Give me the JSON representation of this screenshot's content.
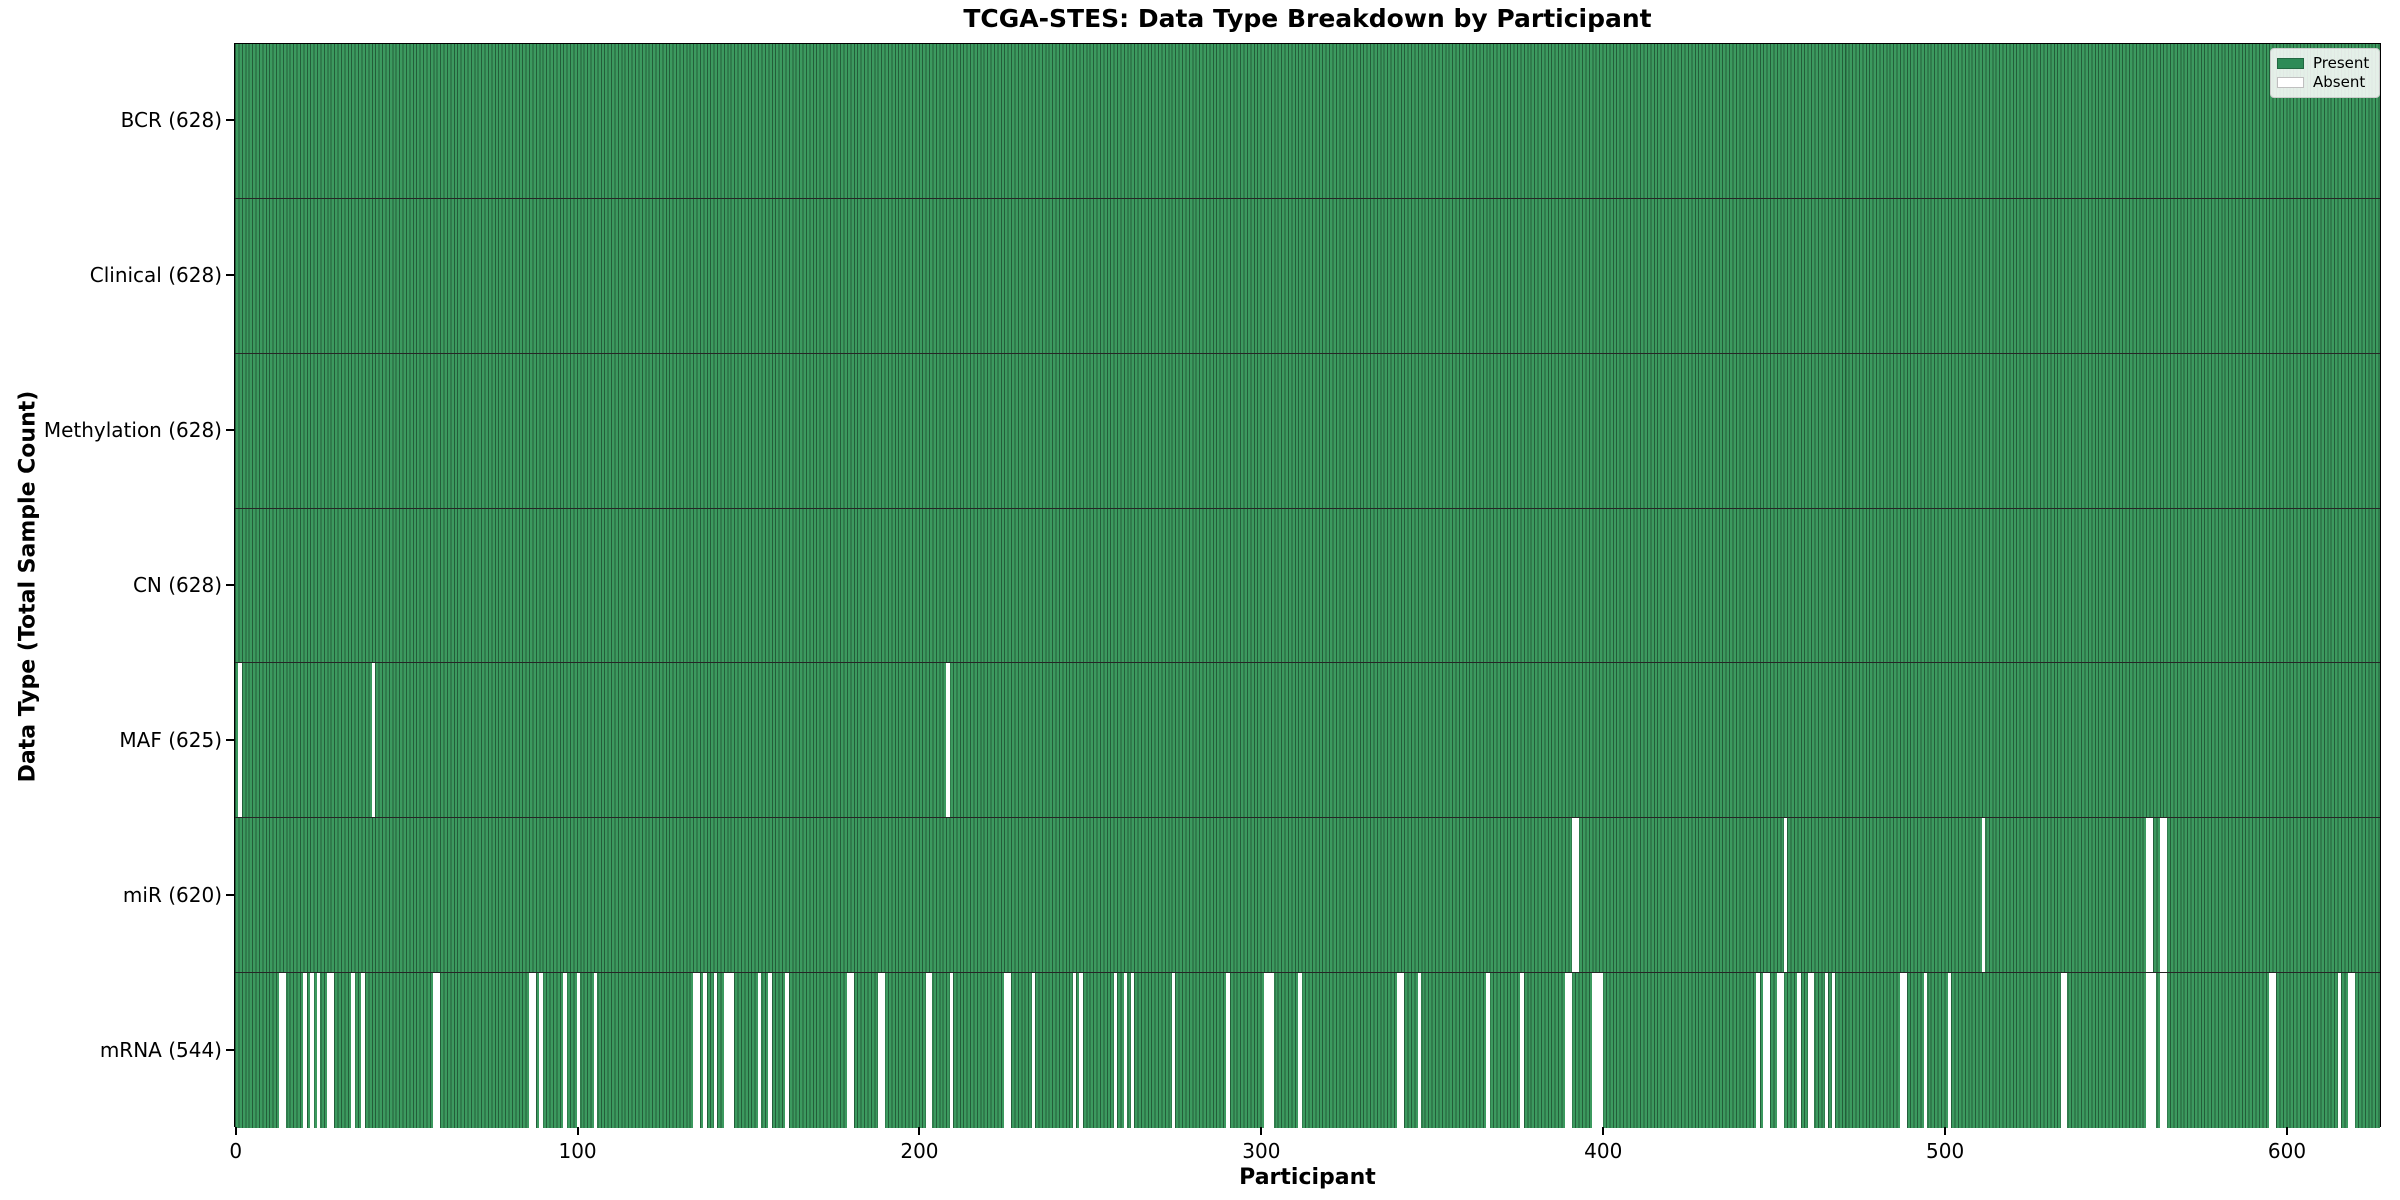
{
  "title": "TCGA-STES: Data Type Breakdown by Participant",
  "chart_data": {
    "type": "heatmap",
    "title": "TCGA-STES: Data Type Breakdown by Participant",
    "xlabel": "Participant",
    "ylabel": "Data Type (Total Sample Count)",
    "x_ticks": [
      0,
      100,
      200,
      300,
      400,
      500,
      600
    ],
    "x_range": [
      -0.5,
      627.5
    ],
    "n_participants": 628,
    "grid": false,
    "legend_position": "upper right",
    "legend": [
      {
        "label": "Present",
        "color": "#2e8b57"
      },
      {
        "label": "Absent",
        "color": "#ffffff"
      }
    ],
    "colors": {
      "present_fill": "#3c9a5f",
      "bar_edge": "rgba(10,35,20,0.5)",
      "absent_fill": "#ffffff"
    },
    "rows": [
      {
        "data_type": "BCR",
        "label": "BCR (628)",
        "present_count": 628,
        "absent_participants": []
      },
      {
        "data_type": "Clinical",
        "label": "Clinical (628)",
        "present_count": 628,
        "absent_participants": []
      },
      {
        "data_type": "Methylation",
        "label": "Methylation (628)",
        "present_count": 628,
        "absent_participants": []
      },
      {
        "data_type": "CN",
        "label": "CN (628)",
        "present_count": 628,
        "absent_participants": []
      },
      {
        "data_type": "MAF",
        "label": "MAF (625)",
        "present_count": 625,
        "absent_participants": [
          1,
          40,
          208
        ]
      },
      {
        "data_type": "miR",
        "label": "miR (620)",
        "present_count": 620,
        "absent_participants": [
          391,
          392,
          453,
          511,
          559,
          560,
          563,
          564
        ]
      },
      {
        "data_type": "mRNA",
        "label": "mRNA (544)",
        "present_count": 544,
        "absent_participants": [
          13,
          14,
          20,
          22,
          24,
          27,
          28,
          34,
          37,
          58,
          59,
          86,
          87,
          89,
          96,
          100,
          105,
          134,
          135,
          137,
          140,
          143,
          144,
          145,
          153,
          156,
          161,
          179,
          180,
          188,
          189,
          202,
          203,
          209,
          225,
          226,
          233,
          245,
          247,
          257,
          260,
          262,
          274,
          290,
          301,
          302,
          303,
          311,
          340,
          341,
          346,
          366,
          376,
          389,
          390,
          397,
          398,
          399,
          445,
          447,
          448,
          451,
          452,
          457,
          460,
          461,
          465,
          467,
          487,
          488,
          494,
          501,
          534,
          535,
          559,
          560,
          561,
          563,
          564,
          595,
          596,
          615,
          618,
          619
        ]
      }
    ]
  }
}
